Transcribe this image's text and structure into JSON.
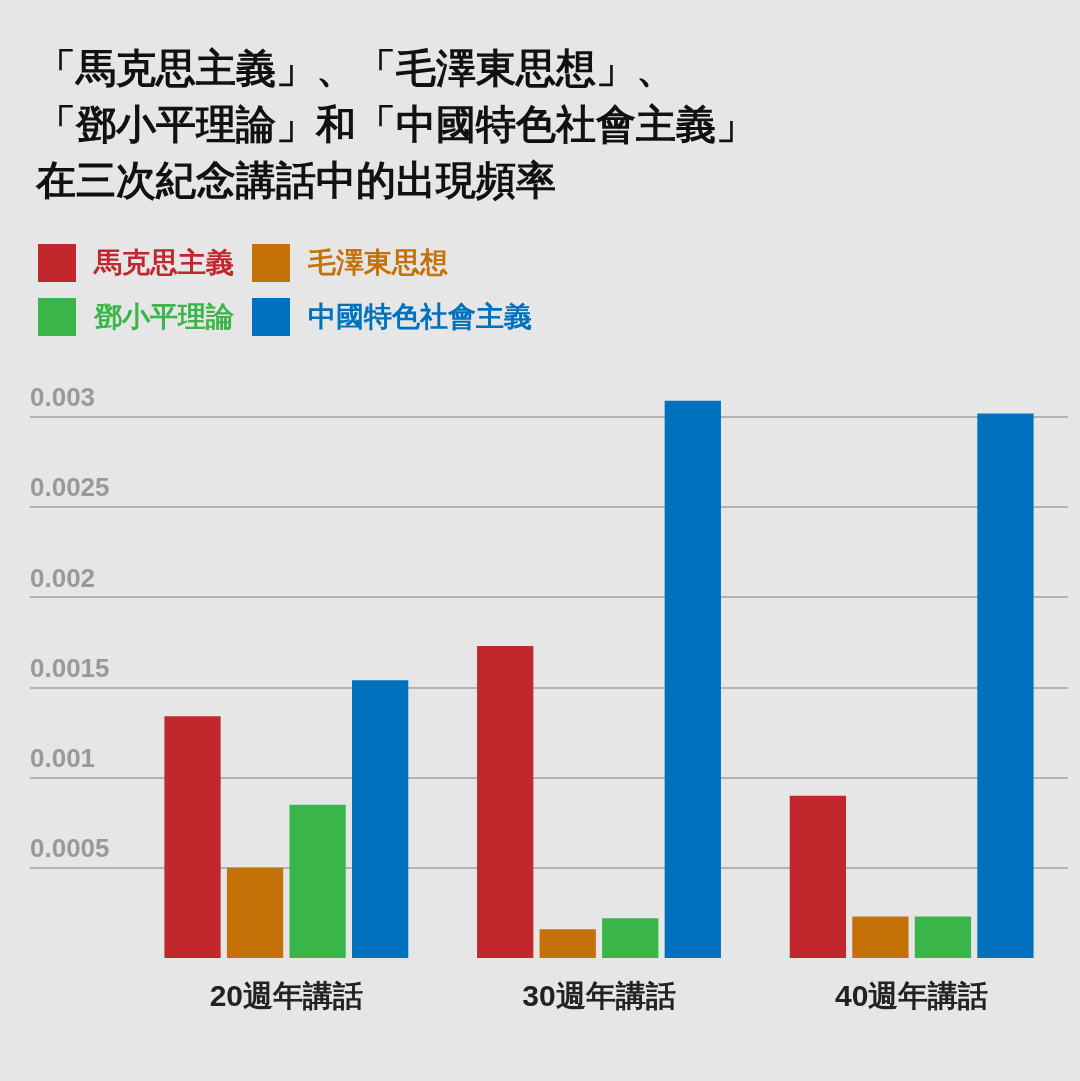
{
  "chart_data": {
    "type": "bar",
    "title": "「馬克思主義」、「毛澤東思想」、「鄧小平理論」和「中國特色社會主義」在三次紀念講話中的出現頻率",
    "categories": [
      "20週年講話",
      "30週年講話",
      "40週年講話"
    ],
    "series": [
      {
        "name": "馬克思主義",
        "color": "#c1272d",
        "values": [
          0.00134,
          0.00173,
          0.0009
        ]
      },
      {
        "name": "毛澤東思想",
        "color": "#c47207",
        "values": [
          0.0005,
          0.00016,
          0.00023
        ]
      },
      {
        "name": "鄧小平理論",
        "color": "#39b54a",
        "values": [
          0.00085,
          0.00022,
          0.00023
        ]
      },
      {
        "name": "中國特色社會主義",
        "color": "#0071bc",
        "values": [
          0.00154,
          0.00309,
          0.00302
        ]
      }
    ],
    "ylim": [
      0,
      0.0031
    ],
    "yticks": [
      0.0005,
      0.001,
      0.0015,
      0.002,
      0.0025,
      0.003
    ],
    "grid": "y",
    "legend": "top left"
  }
}
